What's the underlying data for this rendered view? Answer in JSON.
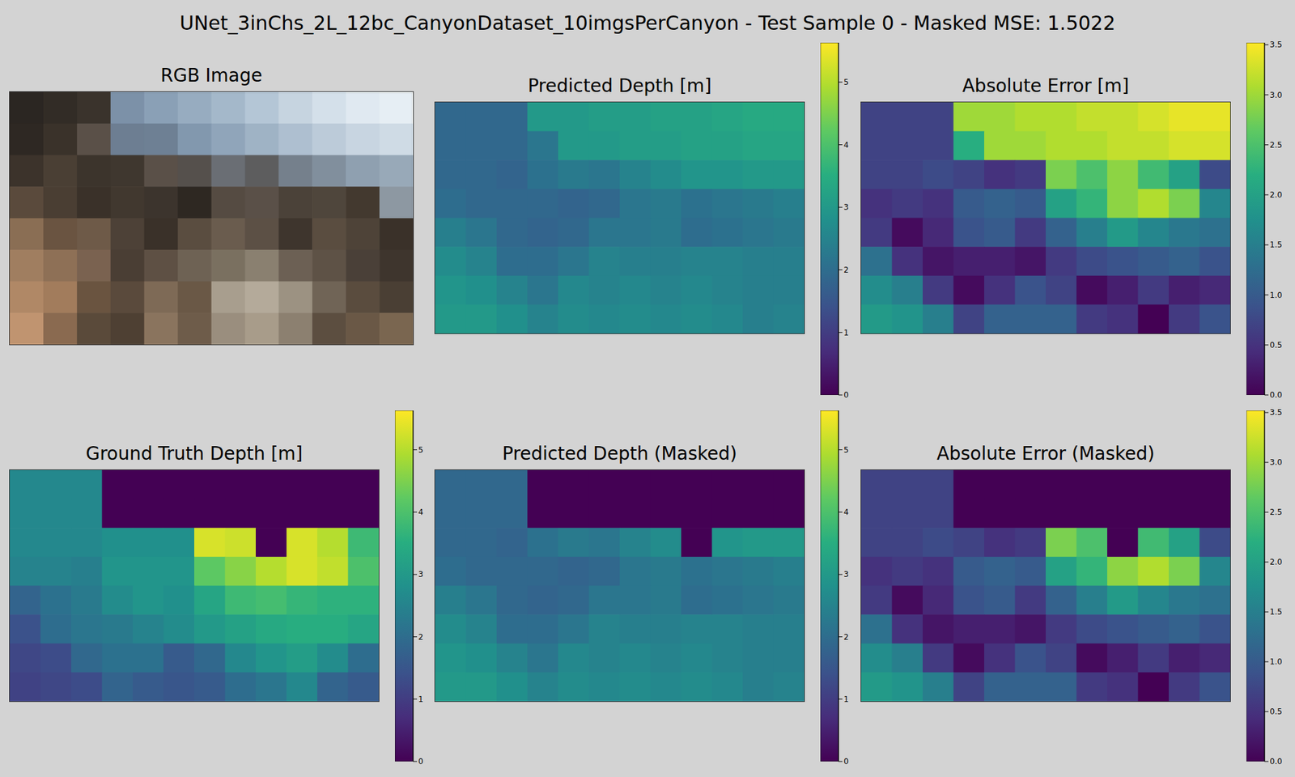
{
  "title": "UNet_3inChs_2L_12bc_CanyonDataset_10imgsPerCanyon - Test Sample 0 - Masked MSE: 1.5022",
  "chart_data": [
    {
      "type": "image",
      "title": "RGB Image",
      "tick_labels": false,
      "pixels": [
        [
          "#2b2622",
          "#322c26",
          "#3a332c",
          "#7c91a8",
          "#8aa0b6",
          "#97acc0",
          "#a4b8ca",
          "#b4c6d6",
          "#c6d4e0",
          "#d4e0ea",
          "#e0e9f1",
          "#e6eef4"
        ],
        [
          "#2e2823",
          "#3a322a",
          "#5a5048",
          "#6d7e92",
          "#6e8094",
          "#8298ae",
          "#90a5ba",
          "#9fb3c5",
          "#aebfd0",
          "#bccbd9",
          "#c8d5e1",
          "#cfdbe5"
        ],
        [
          "#3c332b",
          "#4a3f34",
          "#3c342c",
          "#3f372f",
          "#5a5048",
          "#55504c",
          "#6a6e74",
          "#5d5d5e",
          "#75808c",
          "#818f9d",
          "#8fa0b0",
          "#98a9b8"
        ],
        [
          "#5a4a3c",
          "#4a3e33",
          "#3a3129",
          "#41382f",
          "#3c342d",
          "#2e2822",
          "#554b42",
          "#5a5048",
          "#4b4239",
          "#4f463c",
          "#43392f",
          "#8d98a2"
        ],
        [
          "#8a6e54",
          "#6a5441",
          "#6e5a48",
          "#4d4137",
          "#3a3129",
          "#5a4d40",
          "#6a5c4e",
          "#5c5045",
          "#3e352d",
          "#5a4d40",
          "#4e4338",
          "#3a3129"
        ],
        [
          "#a07e60",
          "#8e7056",
          "#7a6250",
          "#4a3e34",
          "#5e5044",
          "#6e6254",
          "#7a7060",
          "#8a8070",
          "#6c6054",
          "#5e5246",
          "#4a4038",
          "#3e352d"
        ],
        [
          "#b08866",
          "#a27c5c",
          "#6a5440",
          "#5a4a3c",
          "#7e6a56",
          "#6a5846",
          "#a89e8e",
          "#b4aa9a",
          "#9c9282",
          "#706456",
          "#5a4c3e",
          "#4a3f34"
        ],
        [
          "#c09470",
          "#8a6a50",
          "#5a4a3a",
          "#4e4033",
          "#8a745e",
          "#6e5c4a",
          "#9a8e7e",
          "#a89c8a",
          "#8c8070",
          "#5c4e40",
          "#6a5846",
          "#7a6650"
        ]
      ]
    },
    {
      "type": "heatmap",
      "title": "Predicted Depth [m]",
      "tick_labels": false,
      "colorbar": {
        "range": [
          0,
          5.63
        ],
        "ticks": [
          0,
          1,
          2,
          3,
          4,
          5
        ]
      },
      "cells": [
        [
          1.9,
          1.9,
          1.9,
          3.0,
          3.0,
          3.1,
          3.1,
          3.2,
          3.2,
          3.3,
          3.4,
          3.4
        ],
        [
          1.9,
          1.9,
          1.9,
          2.2,
          3.0,
          3.0,
          3.1,
          3.1,
          3.2,
          3.2,
          3.3,
          3.3
        ],
        [
          1.9,
          1.9,
          1.8,
          2.1,
          2.3,
          2.2,
          2.5,
          2.7,
          2.9,
          2.9,
          3.0,
          3.0
        ],
        [
          2.0,
          1.9,
          1.9,
          1.9,
          1.8,
          1.9,
          2.2,
          2.3,
          2.1,
          2.2,
          2.3,
          2.4
        ],
        [
          2.4,
          2.2,
          1.9,
          1.8,
          1.9,
          2.2,
          2.2,
          2.3,
          2.0,
          2.1,
          2.2,
          2.3
        ],
        [
          2.7,
          2.5,
          2.0,
          2.0,
          2.2,
          2.5,
          2.4,
          2.4,
          2.5,
          2.5,
          2.4,
          2.4
        ],
        [
          2.9,
          2.8,
          2.5,
          2.2,
          2.6,
          2.5,
          2.6,
          2.5,
          2.6,
          2.5,
          2.4,
          2.4
        ],
        [
          3.0,
          3.0,
          2.8,
          2.5,
          2.7,
          2.6,
          2.7,
          2.6,
          2.7,
          2.6,
          2.4,
          2.5
        ]
      ]
    },
    {
      "type": "heatmap",
      "title": "Absolute Error [m]",
      "tick_labels": false,
      "colorbar": {
        "range": [
          0,
          3.52
        ],
        "ticks": [
          {
            "value": 0,
            "label": "0.0"
          },
          0.5,
          {
            "value": 1,
            "label": "1.0"
          },
          1.5,
          {
            "value": 2,
            "label": "2.0"
          },
          2.5,
          {
            "value": 3,
            "label": "3.0"
          },
          3.5
        ]
      },
      "cells": [
        [
          0.7,
          0.7,
          0.7,
          3.0,
          3.0,
          3.1,
          3.1,
          3.2,
          3.2,
          3.3,
          3.4,
          3.4
        ],
        [
          0.7,
          0.7,
          0.7,
          2.2,
          3.0,
          3.0,
          3.1,
          3.1,
          3.2,
          3.2,
          3.3,
          3.3
        ],
        [
          0.7,
          0.7,
          0.8,
          0.7,
          0.5,
          0.6,
          2.8,
          2.5,
          2.9,
          2.4,
          2.0,
          0.8
        ],
        [
          0.5,
          0.6,
          0.5,
          1.0,
          1.1,
          1.0,
          2.0,
          2.3,
          2.9,
          3.1,
          2.8,
          1.6
        ],
        [
          0.6,
          0.1,
          0.4,
          0.9,
          1.0,
          0.6,
          1.1,
          1.5,
          1.9,
          1.6,
          1.4,
          1.3
        ],
        [
          1.3,
          0.5,
          0.2,
          0.3,
          0.3,
          0.2,
          0.6,
          0.8,
          0.9,
          1.0,
          1.1,
          0.9
        ],
        [
          1.7,
          1.5,
          0.6,
          0.1,
          0.5,
          0.9,
          0.7,
          0.1,
          0.3,
          0.6,
          0.3,
          0.4
        ],
        [
          1.9,
          1.8,
          1.5,
          0.7,
          1.1,
          1.1,
          1.1,
          0.6,
          0.5,
          0.0,
          0.6,
          0.9
        ]
      ]
    },
    {
      "type": "heatmap",
      "title": "Ground Truth Depth [m]",
      "tick_labels": false,
      "colorbar": {
        "range": [
          0,
          5.63
        ],
        "ticks": [
          0,
          1,
          2,
          3,
          4,
          5
        ]
      },
      "cells": [
        [
          2.6,
          2.6,
          2.6,
          0,
          0,
          0,
          0,
          0,
          0,
          0,
          0,
          0
        ],
        [
          2.6,
          2.6,
          2.6,
          0,
          0,
          0,
          0,
          0,
          0,
          0,
          0,
          0
        ],
        [
          2.6,
          2.6,
          2.6,
          2.8,
          2.8,
          2.8,
          5.3,
          5.2,
          0,
          5.3,
          5.0,
          3.8
        ],
        [
          2.5,
          2.5,
          2.4,
          2.9,
          2.9,
          2.9,
          4.2,
          4.6,
          5.0,
          5.3,
          5.1,
          4.0
        ],
        [
          1.8,
          2.1,
          2.3,
          2.7,
          2.9,
          2.8,
          3.3,
          3.8,
          3.9,
          3.7,
          3.6,
          3.6
        ],
        [
          1.4,
          2.0,
          2.2,
          2.3,
          2.5,
          2.7,
          3.0,
          3.2,
          3.4,
          3.5,
          3.5,
          3.3
        ],
        [
          1.2,
          1.3,
          1.9,
          2.1,
          2.1,
          1.6,
          1.9,
          2.6,
          2.9,
          3.1,
          2.7,
          2.0
        ],
        [
          1.1,
          1.2,
          1.3,
          1.8,
          1.6,
          1.5,
          1.6,
          2.0,
          2.2,
          2.6,
          1.8,
          1.6
        ]
      ]
    },
    {
      "type": "heatmap",
      "title": "Predicted Depth (Masked)",
      "tick_labels": false,
      "colorbar": {
        "range": [
          0,
          5.63
        ],
        "ticks": [
          0,
          1,
          2,
          3,
          4,
          5
        ]
      },
      "cells": [
        [
          1.9,
          1.9,
          1.9,
          0,
          0,
          0,
          0,
          0,
          0,
          0,
          0,
          0
        ],
        [
          1.9,
          1.9,
          1.9,
          0,
          0,
          0,
          0,
          0,
          0,
          0,
          0,
          0
        ],
        [
          1.9,
          1.9,
          1.8,
          2.1,
          2.3,
          2.2,
          2.5,
          2.7,
          0,
          2.9,
          3.0,
          3.0
        ],
        [
          2.0,
          1.9,
          1.9,
          1.9,
          1.8,
          1.9,
          2.2,
          2.3,
          2.1,
          2.2,
          2.3,
          2.4
        ],
        [
          2.4,
          2.2,
          1.9,
          1.8,
          1.9,
          2.2,
          2.2,
          2.3,
          2.0,
          2.1,
          2.2,
          2.3
        ],
        [
          2.7,
          2.5,
          2.0,
          2.0,
          2.2,
          2.5,
          2.4,
          2.4,
          2.5,
          2.5,
          2.4,
          2.4
        ],
        [
          2.9,
          2.8,
          2.5,
          2.2,
          2.6,
          2.5,
          2.6,
          2.5,
          2.6,
          2.5,
          2.4,
          2.4
        ],
        [
          3.0,
          3.0,
          2.8,
          2.5,
          2.7,
          2.6,
          2.7,
          2.6,
          2.7,
          2.6,
          2.4,
          2.5
        ]
      ]
    },
    {
      "type": "heatmap",
      "title": "Absolute Error (Masked)",
      "tick_labels": false,
      "colorbar": {
        "range": [
          0,
          3.52
        ],
        "ticks": [
          {
            "value": 0,
            "label": "0.0"
          },
          0.5,
          {
            "value": 1,
            "label": "1.0"
          },
          1.5,
          {
            "value": 2,
            "label": "2.0"
          },
          2.5,
          {
            "value": 3,
            "label": "3.0"
          },
          3.5
        ]
      },
      "cells": [
        [
          0.7,
          0.7,
          0.7,
          0,
          0,
          0,
          0,
          0,
          0,
          0,
          0,
          0
        ],
        [
          0.7,
          0.7,
          0.7,
          0,
          0,
          0,
          0,
          0,
          0,
          0,
          0,
          0
        ],
        [
          0.7,
          0.7,
          0.8,
          0.7,
          0.5,
          0.6,
          2.8,
          2.5,
          0,
          2.4,
          2.0,
          0.8
        ],
        [
          0.5,
          0.6,
          0.5,
          1.0,
          1.1,
          1.0,
          2.0,
          2.3,
          2.9,
          3.1,
          2.8,
          1.6
        ],
        [
          0.6,
          0.1,
          0.4,
          0.9,
          1.0,
          0.6,
          1.1,
          1.5,
          1.9,
          1.6,
          1.4,
          1.3
        ],
        [
          1.3,
          0.5,
          0.2,
          0.3,
          0.3,
          0.2,
          0.6,
          0.8,
          0.9,
          1.0,
          1.1,
          0.9
        ],
        [
          1.7,
          1.5,
          0.6,
          0.1,
          0.5,
          0.9,
          0.7,
          0.1,
          0.3,
          0.6,
          0.3,
          0.4
        ],
        [
          1.9,
          1.8,
          1.5,
          0.7,
          1.1,
          1.1,
          1.1,
          0.6,
          0.5,
          0.0,
          0.6,
          0.9
        ]
      ]
    }
  ]
}
